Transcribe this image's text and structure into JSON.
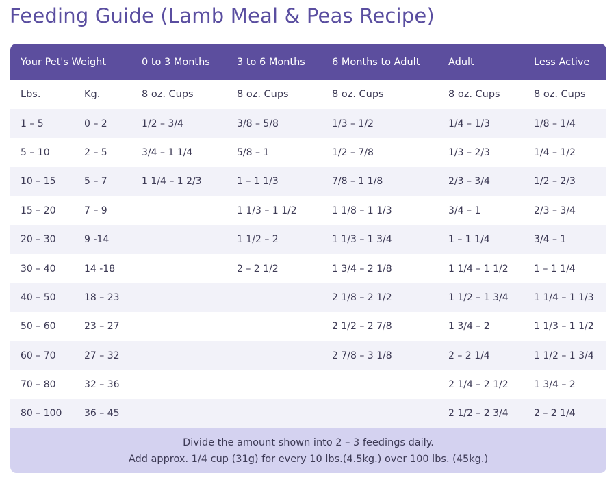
{
  "title": "Feeding Guide (Lamb Meal & Peas Recipe)",
  "header": [
    "Your Pet's Weight",
    "0 to 3 Months",
    "3 to 6 Months",
    "6 Months to Adult",
    "Adult",
    "Less Active"
  ],
  "subheader": [
    "Lbs.",
    "Kg.",
    "8 oz. Cups",
    "8 oz. Cups",
    "8 oz. Cups",
    "8 oz. Cups",
    "8 oz. Cups"
  ],
  "rows": [
    [
      "1 – 5",
      "0 – 2",
      "1/2 – 3/4",
      "3/8 – 5/8",
      "1/3 – 1/2",
      "1/4 – 1/3",
      "1/8 – 1/4"
    ],
    [
      "5 – 10",
      "2 – 5",
      "3/4 – 1 1/4",
      "5/8 – 1",
      "1/2 – 7/8",
      "1/3 – 2/3",
      "1/4 – 1/2"
    ],
    [
      "10 – 15",
      "5 – 7",
      "1 1/4 – 1 2/3",
      "1 – 1 1/3",
      "7/8 – 1 1/8",
      "2/3 – 3/4",
      "1/2 – 2/3"
    ],
    [
      "15 – 20",
      "7 – 9",
      "",
      "1 1/3 – 1 1/2",
      "1 1/8 – 1 1/3",
      "3/4 – 1",
      "2/3 – 3/4"
    ],
    [
      "20 – 30",
      "9 -14",
      "",
      "1 1/2 – 2",
      "1 1/3 – 1 3/4",
      "1 – 1 1/4",
      "3/4 – 1"
    ],
    [
      "30 – 40",
      "14 -18",
      "",
      "2 – 2 1/2",
      "1 3/4 – 2 1/8",
      "1 1/4 – 1 1/2",
      "1 – 1 1/4"
    ],
    [
      "40 – 50",
      "18 – 23",
      "",
      "",
      "2 1/8 – 2 1/2",
      "1 1/2 – 1 3/4",
      "1 1/4 – 1 1/3"
    ],
    [
      "50 – 60",
      "23 – 27",
      "",
      "",
      "2 1/2 – 2 7/8",
      "1 3/4 – 2",
      "1 1/3 – 1 1/2"
    ],
    [
      "60 – 70",
      "27 – 32",
      "",
      "",
      "2 7/8 – 3 1/8",
      "2 – 2 1/4",
      "1 1/2 – 1 3/4"
    ],
    [
      "70 – 80",
      "32 – 36",
      "",
      "",
      "",
      "2 1/4 – 2 1/2",
      "1 3/4 – 2"
    ],
    [
      "80 – 100",
      "36 – 45",
      "",
      "",
      "",
      "2 1/2 – 2 3/4",
      "2 – 2 1/4"
    ]
  ],
  "footer": {
    "line1": "Divide the amount shown into 2 – 3 feedings daily.",
    "line2": "Add approx. 1/4 cup (31g) for every 10 lbs.(4.5kg.) over 100 lbs. (45kg.)"
  }
}
